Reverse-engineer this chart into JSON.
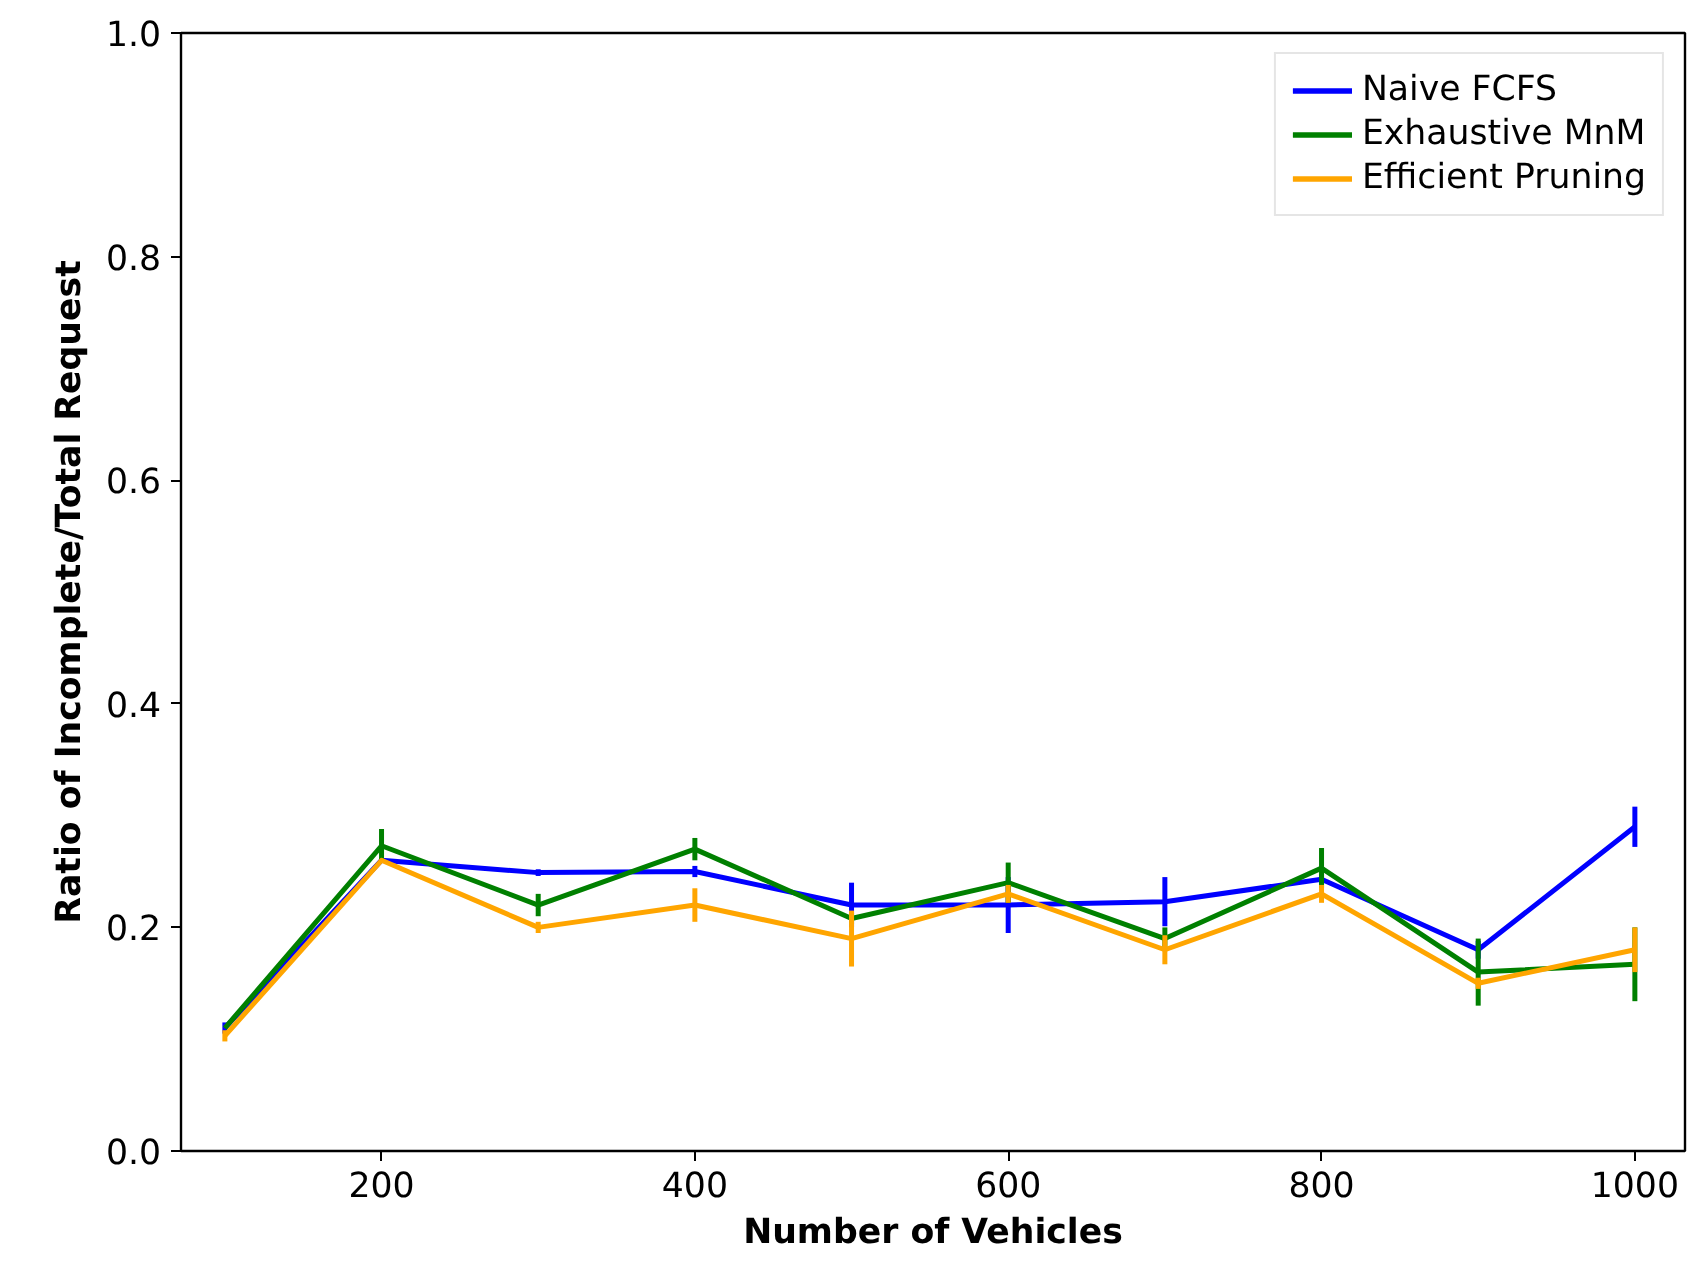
{
  "chart_data": {
    "type": "line",
    "xlabel": "Number of Vehicles",
    "ylabel": "Ratio of Incomplete/Total Request",
    "x": [
      100,
      200,
      300,
      400,
      500,
      600,
      700,
      800,
      900,
      1000
    ],
    "series": [
      {
        "name": "Naive FCFS",
        "color": "#0000ff",
        "values": [
          0.11,
          0.26,
          0.249,
          0.25,
          0.22,
          0.22,
          0.223,
          0.243,
          0.18,
          0.29
        ],
        "errors": [
          0.005,
          null,
          0.003,
          0.005,
          0.02,
          0.025,
          0.022,
          0.005,
          0.008,
          0.018
        ]
      },
      {
        "name": "Exhaustive MnM",
        "color": "#008000",
        "values": [
          0.11,
          0.273,
          0.22,
          0.27,
          0.208,
          0.24,
          0.19,
          0.253,
          0.16,
          0.167
        ],
        "errors": [
          null,
          0.015,
          0.01,
          0.01,
          0.005,
          0.018,
          0.01,
          0.018,
          0.03,
          0.033
        ]
      },
      {
        "name": "Efficient Pruning",
        "color": "#ffa500",
        "values": [
          0.103,
          0.26,
          0.2,
          0.22,
          0.19,
          0.23,
          0.18,
          0.23,
          0.15,
          0.18
        ],
        "errors": [
          0.005,
          null,
          0.005,
          0.015,
          0.025,
          0.008,
          0.013,
          0.008,
          0.005,
          0.02
        ]
      }
    ],
    "xlim": [
      72,
      1032
    ],
    "ylim": [
      0,
      1
    ],
    "xticks": [
      200,
      400,
      600,
      800,
      1000
    ],
    "yticks": [
      {
        "value": 0,
        "label": "0.0"
      },
      0.2,
      0.4,
      0.6,
      0.8,
      {
        "value": 1,
        "label": "1.0"
      }
    ],
    "legend": "top right",
    "grid": false,
    "marker": "none",
    "line_style": "solid"
  }
}
